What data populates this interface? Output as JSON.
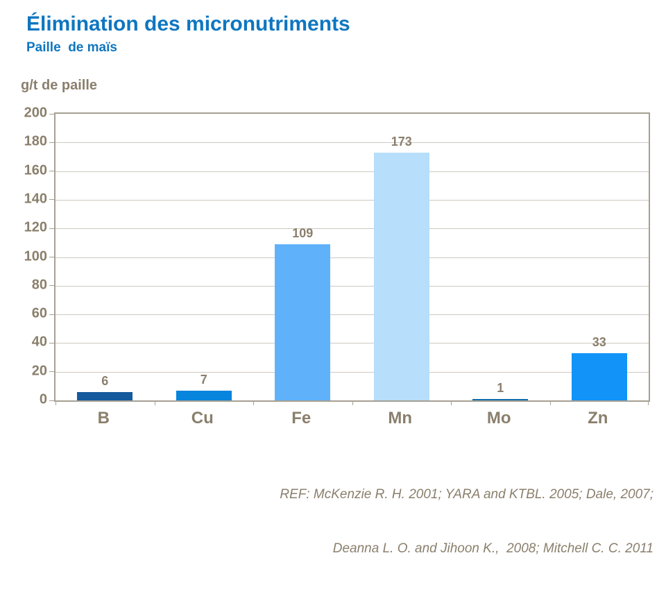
{
  "header": {
    "title": "Élimination des micronutriments",
    "subtitle": "Paille  de maïs"
  },
  "axis_title": "g/t de paille",
  "footer": {
    "ref_line1": "REF: McKenzie R. H. 2001; YARA and KTBL. 2005; Dale, 2007;",
    "ref_line2": "Deanna L. O. and Jihoon K.,  2008; Mitchell C. C. 2011"
  },
  "chart_data": {
    "type": "bar",
    "title": "Élimination des micronutriments",
    "subtitle": "Paille  de maïs",
    "ylabel": "g/t de paille",
    "xlabel": "",
    "categories": [
      "B",
      "Cu",
      "Fe",
      "Mn",
      "Mo",
      "Zn"
    ],
    "values": [
      6,
      7,
      109,
      173,
      1,
      33
    ],
    "bar_colors": [
      "#155A9C",
      "#0784DB",
      "#5FB2FA",
      "#B7DEFB",
      "#0F6CAE",
      "#1193F7"
    ],
    "ylim": [
      0,
      200
    ],
    "ytick_step": 20,
    "grid": true,
    "legend_position": "none",
    "value_labels_shown": true
  },
  "colors": {
    "title_text": "#0E76C0",
    "axis_text": "#8A7F6C",
    "gridline": "#CDC9C1",
    "plot_border": "#A6A093",
    "background": "#FFFFFF"
  }
}
